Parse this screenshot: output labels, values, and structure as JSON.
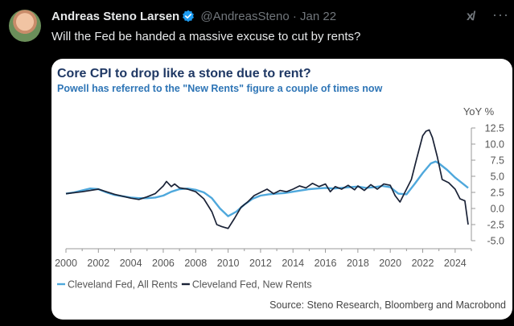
{
  "tweet": {
    "author_name": "Andreas Steno Larsen",
    "handle": "@AndreasSteno",
    "separator": "·",
    "date": "Jan 22",
    "text": "Will the Fed be handed a massive excuse to cut by rents?",
    "grok_label": "x/",
    "more_label": "···"
  },
  "colors": {
    "verified": "#1d9bf0",
    "title": "#1f3864",
    "subtitle": "#2e75b6",
    "all_rents": "#4fa8dc",
    "new_rents": "#1a2236"
  },
  "chart_data": {
    "type": "line",
    "title": "Core CPI to drop like a stone due to rent?",
    "subtitle": "Powell has referred to the \"New Rents\" figure a couple of times now",
    "ylabel": "YoY %",
    "ylim": [
      -5,
      12.5
    ],
    "yticks": [
      12.5,
      10.0,
      7.5,
      5.0,
      2.5,
      0.0,
      -2.5,
      -5.0
    ],
    "ytick_labels": [
      "12.5",
      "10.0",
      "7.5",
      "5.0",
      "2.5",
      "0.0",
      "-2.5",
      "-5.0"
    ],
    "xlim": [
      2000,
      2025
    ],
    "xticks": [
      2000,
      2002,
      2004,
      2006,
      2008,
      2010,
      2012,
      2014,
      2016,
      2018,
      2020,
      2022,
      2024
    ],
    "xtick_labels": [
      "2000",
      "2002",
      "2004",
      "2006",
      "2008",
      "2010",
      "2012",
      "2014",
      "2016",
      "2018",
      "2020",
      "2022",
      "2024"
    ],
    "legend": [
      "Cleveland Fed, All Rents",
      "Cleveland Fed, New Rents"
    ],
    "legend_placement": "bottom-left",
    "source": "Source: Steno Research, Bloomberg and Macrobond",
    "series": [
      {
        "name": "Cleveland Fed, All Rents",
        "x": [
          2000,
          2000.5,
          2001,
          2001.5,
          2002,
          2002.5,
          2003,
          2003.5,
          2004,
          2004.5,
          2005,
          2005.5,
          2006,
          2006.5,
          2007,
          2007.5,
          2008,
          2008.5,
          2009,
          2009.5,
          2010,
          2010.5,
          2011,
          2011.5,
          2012,
          2012.5,
          2013,
          2013.5,
          2014,
          2014.5,
          2015,
          2015.5,
          2016,
          2016.5,
          2017,
          2017.5,
          2018,
          2018.5,
          2019,
          2019.5,
          2020,
          2020.5,
          2021,
          2021.5,
          2022,
          2022.5,
          2022.8,
          2023,
          2023.5,
          2024,
          2024.5,
          2024.8
        ],
        "y": [
          2.3,
          2.5,
          2.8,
          3.1,
          3.0,
          2.5,
          2.1,
          1.9,
          1.7,
          1.6,
          1.6,
          1.7,
          2.0,
          2.6,
          3.0,
          3.1,
          2.9,
          2.5,
          1.6,
          0.0,
          -1.2,
          -0.5,
          0.6,
          1.5,
          2.0,
          2.2,
          2.3,
          2.4,
          2.6,
          2.8,
          3.0,
          3.1,
          3.2,
          3.1,
          3.2,
          3.3,
          3.4,
          3.2,
          3.3,
          3.5,
          3.3,
          2.3,
          2.2,
          3.8,
          5.5,
          7.0,
          7.3,
          7.0,
          6.0,
          4.8,
          3.8,
          3.2
        ]
      },
      {
        "name": "Cleveland Fed, New Rents",
        "x": [
          2000,
          2001,
          2002,
          2003,
          2004,
          2004.5,
          2005,
          2005.5,
          2006,
          2006.2,
          2006.5,
          2006.7,
          2007,
          2007.5,
          2008,
          2008.5,
          2009,
          2009.3,
          2009.6,
          2010,
          2010.4,
          2010.8,
          2011.2,
          2011.6,
          2012,
          2012.4,
          2012.8,
          2013.2,
          2013.6,
          2014,
          2014.4,
          2014.8,
          2015.2,
          2015.6,
          2016,
          2016.3,
          2016.6,
          2017,
          2017.4,
          2017.8,
          2018,
          2018.4,
          2018.8,
          2019.2,
          2019.6,
          2020,
          2020.3,
          2020.6,
          2020.9,
          2021.3,
          2021.6,
          2022,
          2022.2,
          2022.4,
          2022.6,
          2022.9,
          2023.2,
          2023.6,
          2024,
          2024.3,
          2024.6,
          2024.8
        ],
        "y": [
          2.3,
          2.6,
          3.0,
          2.2,
          1.6,
          1.4,
          1.8,
          2.3,
          3.5,
          4.2,
          3.4,
          3.8,
          3.2,
          3.0,
          2.6,
          1.5,
          -0.5,
          -2.5,
          -2.8,
          -3.1,
          -1.5,
          0.2,
          1.0,
          2.0,
          2.5,
          3.0,
          2.3,
          2.8,
          2.6,
          3.0,
          3.5,
          3.2,
          3.9,
          3.4,
          3.8,
          2.6,
          3.4,
          3.0,
          3.6,
          2.9,
          3.5,
          2.8,
          3.7,
          3.0,
          3.8,
          3.6,
          2.0,
          1.0,
          2.5,
          4.5,
          7.5,
          11.3,
          12.0,
          12.2,
          11.0,
          8.0,
          4.5,
          4.0,
          3.0,
          1.5,
          1.2,
          -2.5
        ]
      }
    ]
  }
}
